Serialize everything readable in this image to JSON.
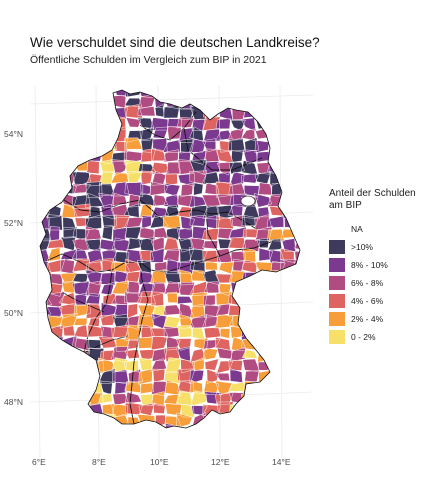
{
  "title": "Wie verschuldet sind die deutschen Landkreise?",
  "subtitle": "Öffentliche Schulden im Vergleich zum BIP in 2021",
  "legend": {
    "title_line1": "Anteil der Schulden",
    "title_line2": "am BIP",
    "items": [
      {
        "label": "NA",
        "color": "#ffffff"
      },
      {
        "label": ">10%",
        "color": "#3e3a5d"
      },
      {
        "label": "8% - 10%",
        "color": "#7b3a8f"
      },
      {
        "label": "6% - 8%",
        "color": "#b14c82"
      },
      {
        "label": "4% - 6%",
        "color": "#dd6460"
      },
      {
        "label": "2% - 4%",
        "color": "#f79d3a"
      },
      {
        "label": "0 - 2%",
        "color": "#f7e06a"
      }
    ]
  },
  "axes": {
    "lat_labels": [
      "54°N",
      "52°N",
      "50°N",
      "48°N"
    ],
    "lon_labels": [
      "6°E",
      "8°E",
      "10°E",
      "12°E",
      "14°E"
    ]
  },
  "map": {
    "region": "Germany",
    "unit": "Landkreise",
    "fill_scale": [
      "#3e3a5d",
      "#7b3a8f",
      "#b14c82",
      "#dd6460",
      "#f79d3a",
      "#f7e06a"
    ],
    "border_color": "#ffffff",
    "state_border_color": "#000000"
  }
}
